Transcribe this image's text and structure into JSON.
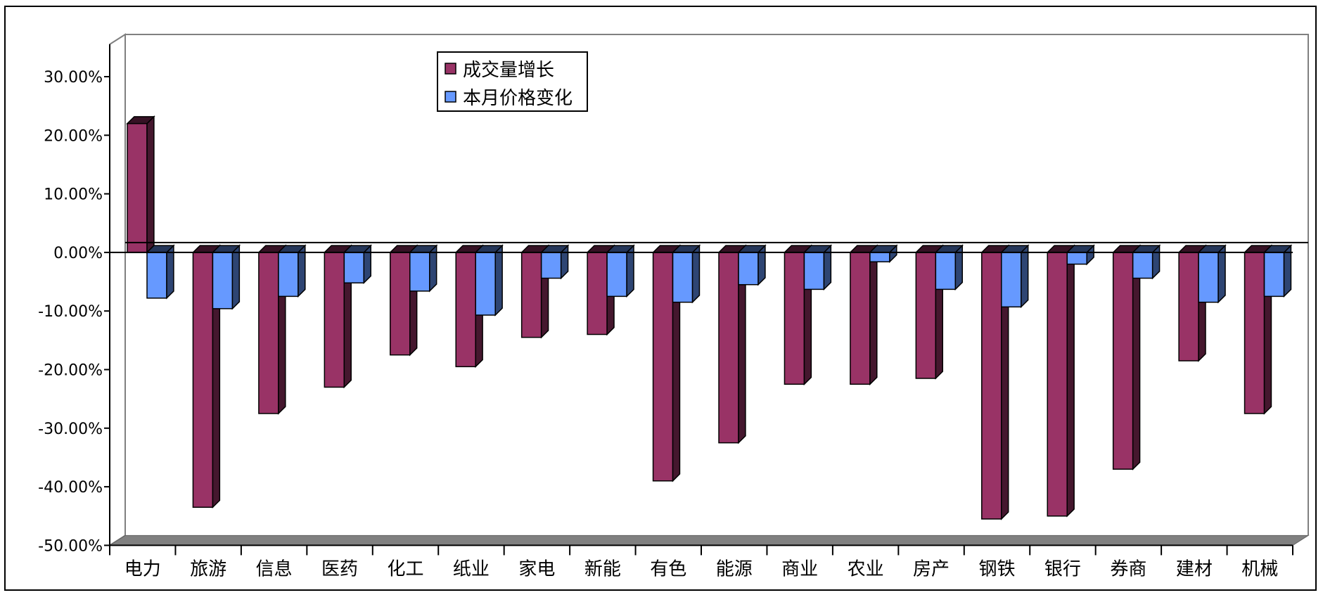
{
  "chart_data": {
    "type": "bar",
    "title": "",
    "xlabel": "",
    "ylabel": "",
    "categories": [
      "电力",
      "旅游",
      "信息",
      "医药",
      "化工",
      "纸业",
      "家电",
      "新能",
      "有色",
      "能源",
      "商业",
      "农业",
      "房产",
      "钢铁",
      "银行",
      "券商",
      "建材",
      "机械"
    ],
    "series": [
      {
        "name": "成交量增长",
        "color": "#993366",
        "values": [
          22.0,
          -43.5,
          -27.5,
          -23.0,
          -17.5,
          -19.5,
          -14.5,
          -14.0,
          -39.0,
          -32.5,
          -22.5,
          -22.5,
          -21.5,
          -45.5,
          -45.0,
          -37.0,
          -18.5,
          -27.5
        ]
      },
      {
        "name": "本月价格变化",
        "color": "#6699FF",
        "values": [
          -7.8,
          -9.6,
          -7.5,
          -5.2,
          -6.6,
          -10.7,
          -4.4,
          -7.5,
          -8.5,
          -5.5,
          -6.3,
          -1.6,
          -6.3,
          -9.3,
          -2.0,
          -4.4,
          -8.5,
          -7.5
        ]
      }
    ],
    "ylim": [
      -50,
      35
    ],
    "yticks": [
      30,
      20,
      10,
      0,
      -10,
      -20,
      -30,
      -40,
      -50
    ],
    "ytick_labels": [
      "30.00%",
      "20.00%",
      "10.00%",
      "0.00%",
      "-10.00%",
      "-20.00%",
      "-30.00%",
      "-40.00%",
      "-50.00%"
    ],
    "legend_position": "top-center",
    "three_d": true,
    "grid": false
  }
}
